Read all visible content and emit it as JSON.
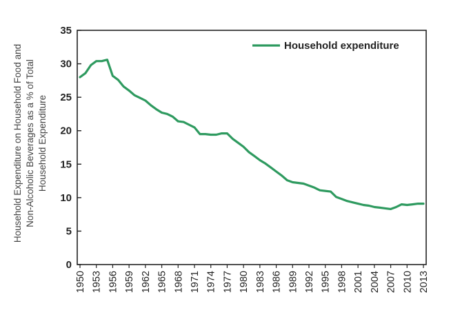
{
  "chart_data": {
    "type": "line",
    "ylabel_lines": [
      "Household Expenditure on Household Food and",
      "Non-Alcoholic Beverages as a % of Total",
      "Household Expenditure"
    ],
    "xlabel": "",
    "ylim": [
      0,
      35
    ],
    "yticks": [
      0,
      5,
      10,
      15,
      20,
      25,
      30,
      35
    ],
    "xlim": [
      1950,
      2013
    ],
    "xticks": [
      1950,
      1953,
      1956,
      1959,
      1962,
      1965,
      1968,
      1971,
      1974,
      1977,
      1980,
      1983,
      1986,
      1989,
      1992,
      1995,
      1998,
      2001,
      2004,
      2007,
      2010,
      2013
    ],
    "grid": false,
    "legend_position": "top-right",
    "series": [
      {
        "name": "Household expenditure",
        "color": "#2e9a5f",
        "x": [
          1950,
          1951,
          1952,
          1953,
          1954,
          1955,
          1956,
          1957,
          1958,
          1959,
          1960,
          1961,
          1962,
          1963,
          1964,
          1965,
          1966,
          1967,
          1968,
          1969,
          1970,
          1971,
          1972,
          1973,
          1974,
          1975,
          1976,
          1977,
          1978,
          1979,
          1980,
          1981,
          1982,
          1983,
          1984,
          1985,
          1986,
          1987,
          1988,
          1989,
          1990,
          1991,
          1992,
          1993,
          1994,
          1995,
          1996,
          1997,
          1998,
          1999,
          2000,
          2001,
          2002,
          2003,
          2004,
          2005,
          2006,
          2007,
          2008,
          2009,
          2010,
          2011,
          2012,
          2013
        ],
        "y": [
          28.0,
          28.6,
          29.8,
          30.4,
          30.4,
          30.6,
          28.2,
          27.6,
          26.6,
          26.0,
          25.3,
          24.9,
          24.5,
          23.8,
          23.2,
          22.7,
          22.5,
          22.1,
          21.4,
          21.3,
          20.9,
          20.5,
          19.5,
          19.5,
          19.4,
          19.4,
          19.6,
          19.6,
          18.8,
          18.2,
          17.6,
          16.8,
          16.2,
          15.6,
          15.1,
          14.5,
          13.9,
          13.3,
          12.6,
          12.3,
          12.2,
          12.1,
          11.8,
          11.5,
          11.1,
          11.0,
          10.9,
          10.1,
          9.8,
          9.5,
          9.3,
          9.1,
          8.9,
          8.8,
          8.6,
          8.5,
          8.4,
          8.3,
          8.6,
          9.0,
          8.9,
          9.0,
          9.1,
          9.1
        ]
      }
    ]
  }
}
